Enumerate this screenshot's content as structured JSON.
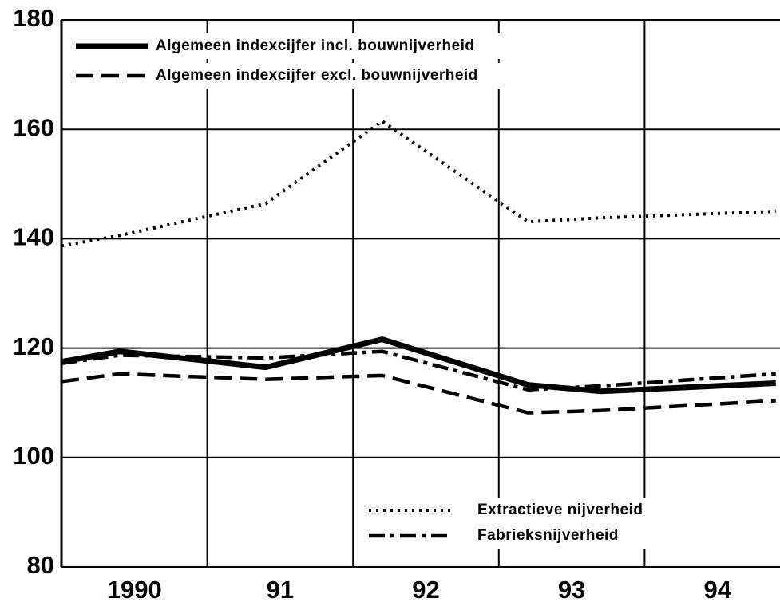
{
  "chart_data": {
    "type": "line",
    "x": [
      1990.0,
      1990.4,
      1991.4,
      1992.2,
      1993.2,
      1993.7,
      1994.9
    ],
    "xlim": [
      1990,
      1995
    ],
    "xticks": [
      1991,
      1992,
      1993,
      1994
    ],
    "x_labels": [
      {
        "value": 1990.5,
        "label": "1990"
      },
      {
        "value": 1991.5,
        "label": "91"
      },
      {
        "value": 1992.5,
        "label": "92"
      },
      {
        "value": 1993.5,
        "label": "93"
      },
      {
        "value": 1994.5,
        "label": "94"
      }
    ],
    "ylim": [
      80,
      180
    ],
    "yticks": [
      80,
      100,
      120,
      140,
      160,
      180
    ],
    "grid": true,
    "series": [
      {
        "name": "Algemeen indexcijfer incl. bouwnijverheid",
        "color": "#000000",
        "style": "solid",
        "values": [
          117.5,
          119.4,
          116.5,
          121.6,
          113.3,
          112.1,
          113.6
        ]
      },
      {
        "name": "Algemeen indexcijfer excl. bouwnijverheid",
        "color": "#000000",
        "style": "dashed",
        "values": [
          113.9,
          115.3,
          114.3,
          115.0,
          108.2,
          108.6,
          110.4
        ]
      },
      {
        "name": "Extractieve nijverheid",
        "color": "#000000",
        "style": "dotted",
        "values": [
          138.7,
          140.6,
          146.4,
          161.5,
          143.1,
          143.8,
          145.0
        ]
      },
      {
        "name": "Fabrieksnijverheid",
        "color": "#000000",
        "style": "dashdot",
        "values": [
          117.2,
          118.7,
          118.2,
          119.4,
          112.4,
          113.1,
          115.3
        ]
      }
    ]
  }
}
